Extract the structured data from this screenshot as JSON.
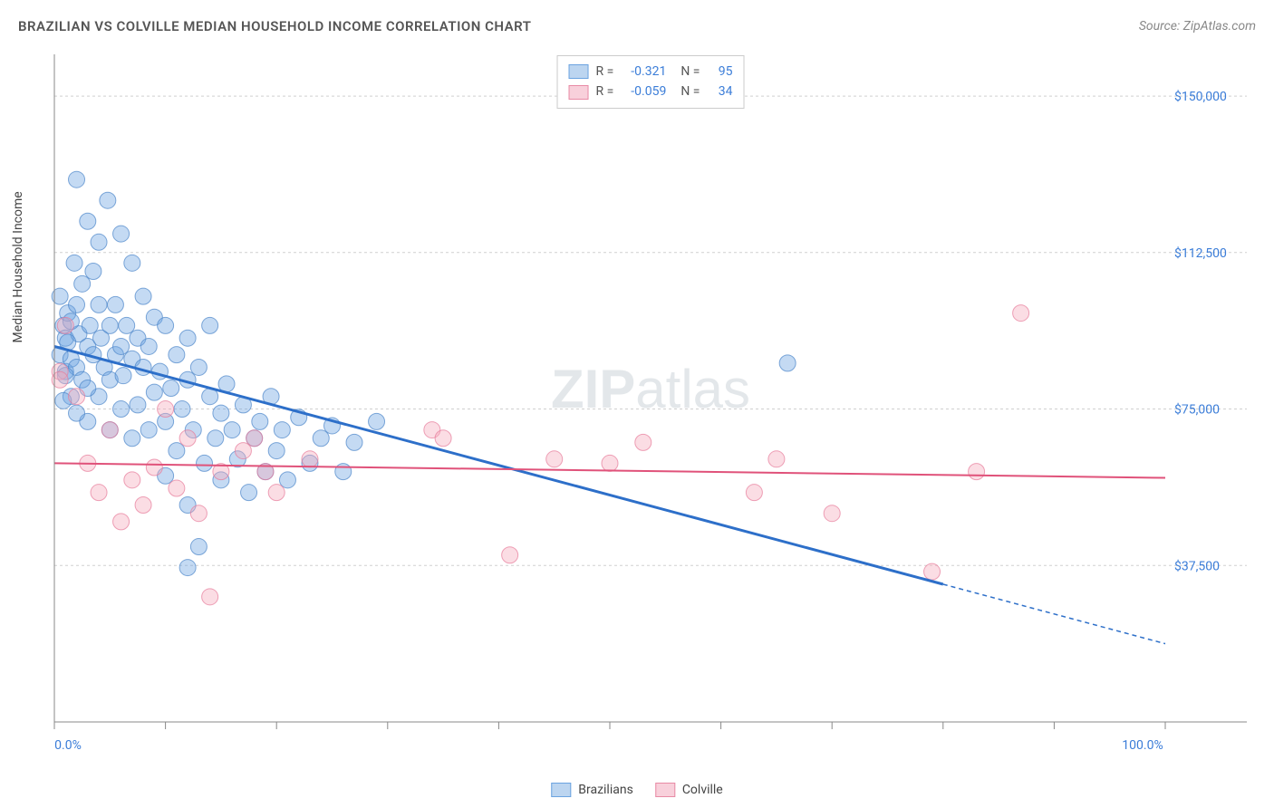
{
  "title": "BRAZILIAN VS COLVILLE MEDIAN HOUSEHOLD INCOME CORRELATION CHART",
  "source": "Source: ZipAtlas.com",
  "y_axis_label": "Median Household Income",
  "watermark_bold": "ZIP",
  "watermark_rest": "atlas",
  "chart": {
    "type": "scatter",
    "xlim": [
      0,
      100
    ],
    "ylim": [
      0,
      160000
    ],
    "y_ticks": [
      {
        "value": 37500,
        "label": "$37,500"
      },
      {
        "value": 75000,
        "label": "$75,000"
      },
      {
        "value": 112500,
        "label": "$112,500"
      },
      {
        "value": 150000,
        "label": "$150,000"
      }
    ],
    "x_ticks": [
      0,
      10,
      20,
      30,
      40,
      50,
      60,
      70,
      80,
      90,
      100
    ],
    "x_tick_labels": [
      {
        "value": 0,
        "label": "0.0%"
      },
      {
        "value": 100,
        "label": "100.0%"
      }
    ],
    "background_color": "#ffffff",
    "grid_color": "#d0d0d0",
    "axis_color": "#888888",
    "marker_radius": 9,
    "marker_opacity": 0.55,
    "series": [
      {
        "name": "Brazilians",
        "color": "#6ba3e0",
        "border_color": "#4a85c9",
        "fill_opacity": 0.4,
        "line_color": "#2d6fc9",
        "line_width": 3,
        "R": "-0.321",
        "N": "95",
        "regression": {
          "x1": 0,
          "y1": 90000,
          "x2": 80,
          "y2": 33000,
          "x3": 100,
          "y3": 18750
        },
        "points": [
          [
            0.5,
            88000
          ],
          [
            0.8,
            95000
          ],
          [
            1,
            92000
          ],
          [
            1,
            84000
          ],
          [
            1.2,
            98000
          ],
          [
            1.5,
            87000
          ],
          [
            1.5,
            78000
          ],
          [
            1.8,
            110000
          ],
          [
            2,
            130000
          ],
          [
            2,
            100000
          ],
          [
            2,
            85000
          ],
          [
            2.2,
            93000
          ],
          [
            2.5,
            82000
          ],
          [
            2.5,
            105000
          ],
          [
            3,
            120000
          ],
          [
            3,
            90000
          ],
          [
            3,
            72000
          ],
          [
            3.2,
            95000
          ],
          [
            3.5,
            88000
          ],
          [
            3.5,
            108000
          ],
          [
            4,
            115000
          ],
          [
            4,
            100000
          ],
          [
            4,
            78000
          ],
          [
            4.2,
            92000
          ],
          [
            4.5,
            85000
          ],
          [
            4.8,
            125000
          ],
          [
            5,
            95000
          ],
          [
            5,
            82000
          ],
          [
            5,
            70000
          ],
          [
            5.5,
            88000
          ],
          [
            5.5,
            100000
          ],
          [
            6,
            117000
          ],
          [
            6,
            90000
          ],
          [
            6,
            75000
          ],
          [
            6.2,
            83000
          ],
          [
            6.5,
            95000
          ],
          [
            7,
            110000
          ],
          [
            7,
            87000
          ],
          [
            7,
            68000
          ],
          [
            7.5,
            92000
          ],
          [
            7.5,
            76000
          ],
          [
            8,
            102000
          ],
          [
            8,
            85000
          ],
          [
            8.5,
            90000
          ],
          [
            8.5,
            70000
          ],
          [
            9,
            97000
          ],
          [
            9,
            79000
          ],
          [
            9.5,
            84000
          ],
          [
            10,
            95000
          ],
          [
            10,
            72000
          ],
          [
            10,
            59000
          ],
          [
            10.5,
            80000
          ],
          [
            11,
            88000
          ],
          [
            11,
            65000
          ],
          [
            11.5,
            75000
          ],
          [
            12,
            82000
          ],
          [
            12,
            92000
          ],
          [
            12,
            52000
          ],
          [
            12.5,
            70000
          ],
          [
            13,
            85000
          ],
          [
            13.5,
            62000
          ],
          [
            14,
            78000
          ],
          [
            14,
            95000
          ],
          [
            14.5,
            68000
          ],
          [
            15,
            74000
          ],
          [
            15,
            58000
          ],
          [
            15.5,
            81000
          ],
          [
            16,
            70000
          ],
          [
            16.5,
            63000
          ],
          [
            17,
            76000
          ],
          [
            17.5,
            55000
          ],
          [
            18,
            68000
          ],
          [
            18.5,
            72000
          ],
          [
            19,
            60000
          ],
          [
            19.5,
            78000
          ],
          [
            20,
            65000
          ],
          [
            20.5,
            70000
          ],
          [
            21,
            58000
          ],
          [
            22,
            73000
          ],
          [
            23,
            62000
          ],
          [
            24,
            68000
          ],
          [
            25,
            71000
          ],
          [
            26,
            60000
          ],
          [
            27,
            67000
          ],
          [
            29,
            72000
          ],
          [
            12,
            37000
          ],
          [
            13,
            42000
          ],
          [
            66,
            86000
          ],
          [
            1,
            83000
          ],
          [
            1.5,
            96000
          ],
          [
            2,
            74000
          ],
          [
            3,
            80000
          ],
          [
            0.5,
            102000
          ],
          [
            0.8,
            77000
          ],
          [
            1.2,
            91000
          ]
        ]
      },
      {
        "name": "Colville",
        "color": "#f5a9bc",
        "border_color": "#e77a9a",
        "fill_opacity": 0.4,
        "line_color": "#e0527a",
        "line_width": 2,
        "R": "-0.059",
        "N": "34",
        "regression": {
          "x1": 0,
          "y1": 62000,
          "x2": 100,
          "y2": 58500
        },
        "points": [
          [
            0.5,
            84000
          ],
          [
            1,
            95000
          ],
          [
            2,
            78000
          ],
          [
            3,
            62000
          ],
          [
            4,
            55000
          ],
          [
            5,
            70000
          ],
          [
            6,
            48000
          ],
          [
            7,
            58000
          ],
          [
            8,
            52000
          ],
          [
            9,
            61000
          ],
          [
            10,
            75000
          ],
          [
            11,
            56000
          ],
          [
            12,
            68000
          ],
          [
            13,
            50000
          ],
          [
            14,
            30000
          ],
          [
            15,
            60000
          ],
          [
            17,
            65000
          ],
          [
            18,
            68000
          ],
          [
            19,
            60000
          ],
          [
            20,
            55000
          ],
          [
            23,
            63000
          ],
          [
            34,
            70000
          ],
          [
            35,
            68000
          ],
          [
            41,
            40000
          ],
          [
            45,
            63000
          ],
          [
            50,
            62000
          ],
          [
            53,
            67000
          ],
          [
            63,
            55000
          ],
          [
            65,
            63000
          ],
          [
            70,
            50000
          ],
          [
            79,
            36000
          ],
          [
            83,
            60000
          ],
          [
            87,
            98000
          ],
          [
            0.5,
            82000
          ]
        ]
      }
    ]
  },
  "legend_bottom": [
    {
      "label": "Brazilians",
      "fill": "#bcd5f0",
      "border": "#6ba3e0"
    },
    {
      "label": "Colville",
      "fill": "#f8d0db",
      "border": "#e88aa5"
    }
  ],
  "legend_top_labels": {
    "R": "R =",
    "N": "N ="
  }
}
